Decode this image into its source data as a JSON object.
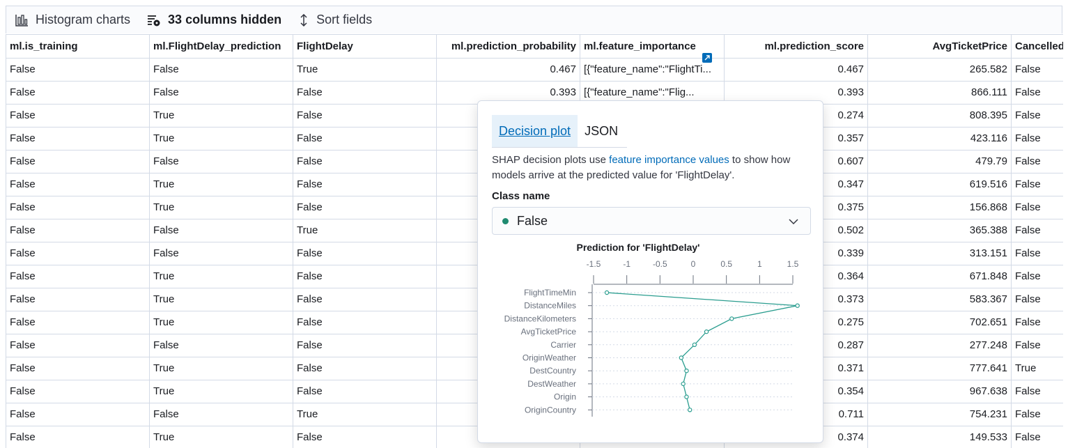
{
  "toolbar": {
    "histogram_label": "Histogram charts",
    "columns_hidden_label": "33 columns hidden",
    "sort_label": "Sort fields"
  },
  "grid": {
    "columns": [
      {
        "label": "ml.is_training",
        "align": "left"
      },
      {
        "label": "ml.FlightDelay_prediction",
        "align": "left"
      },
      {
        "label": "FlightDelay",
        "align": "left"
      },
      {
        "label": "ml.prediction_probability",
        "align": "right"
      },
      {
        "label": "ml.feature_importance",
        "align": "left"
      },
      {
        "label": "ml.prediction_score",
        "align": "right"
      },
      {
        "label": "AvgTicketPrice",
        "align": "right"
      },
      {
        "label": "Cancelled",
        "align": "left"
      }
    ],
    "rows": [
      [
        "False",
        "False",
        "True",
        "0.467",
        "[{\"feature_name\":\"FlightTi...",
        "0.467",
        "265.582",
        "False"
      ],
      [
        "False",
        "False",
        "False",
        "0.393",
        "[{\"feature_name\":\"Flig...",
        "0.393",
        "866.111",
        "False"
      ],
      [
        "False",
        "True",
        "False",
        "",
        "",
        "0.274",
        "808.395",
        "False"
      ],
      [
        "False",
        "True",
        "False",
        "",
        "",
        "0.357",
        "423.116",
        "False"
      ],
      [
        "False",
        "False",
        "False",
        "",
        "",
        "0.607",
        "479.79",
        "False"
      ],
      [
        "False",
        "True",
        "False",
        "",
        "",
        "0.347",
        "619.516",
        "False"
      ],
      [
        "False",
        "True",
        "False",
        "",
        "",
        "0.375",
        "156.868",
        "False"
      ],
      [
        "False",
        "False",
        "True",
        "",
        "",
        "0.502",
        "365.388",
        "False"
      ],
      [
        "False",
        "False",
        "False",
        "",
        "",
        "0.339",
        "313.151",
        "False"
      ],
      [
        "False",
        "True",
        "False",
        "",
        "",
        "0.364",
        "671.848",
        "False"
      ],
      [
        "False",
        "True",
        "False",
        "",
        "",
        "0.373",
        "583.367",
        "False"
      ],
      [
        "False",
        "True",
        "False",
        "",
        "",
        "0.275",
        "702.651",
        "False"
      ],
      [
        "False",
        "False",
        "False",
        "",
        "",
        "0.287",
        "277.248",
        "False"
      ],
      [
        "False",
        "True",
        "False",
        "",
        "",
        "0.371",
        "777.641",
        "True"
      ],
      [
        "False",
        "True",
        "False",
        "",
        "",
        "0.354",
        "967.638",
        "False"
      ],
      [
        "False",
        "False",
        "True",
        "",
        "",
        "0.711",
        "754.231",
        "False"
      ],
      [
        "False",
        "True",
        "False",
        "",
        "",
        "0.374",
        "149.533",
        "False"
      ]
    ]
  },
  "popover": {
    "tabs": [
      {
        "label": "Decision plot",
        "active": true
      },
      {
        "label": "JSON",
        "active": false
      }
    ],
    "description_pre": "SHAP decision plots use ",
    "description_link": "feature importance values",
    "description_post": " to show how models arrive at the predicted value for 'FlightDelay'.",
    "class_label": "Class name",
    "class_value": "False",
    "class_dot_color": "#1f8a70"
  },
  "chart_data": {
    "type": "line",
    "title": "Prediction for 'FlightDelay'",
    "x_ticks": [
      -1.5,
      -1,
      -0.5,
      0,
      0.5,
      1,
      1.5
    ],
    "x_tick_labels": [
      "-1.5",
      "-1",
      "-0.5",
      "0",
      "0.5",
      "1",
      "1.5"
    ],
    "xlim": [
      -1.5,
      1.5
    ],
    "features": [
      "FlightTimeMin",
      "DistanceMiles",
      "DistanceKilometers",
      "AvgTicketPrice",
      "Carrier",
      "OriginWeather",
      "DestCountry",
      "DestWeather",
      "Origin",
      "OriginCountry"
    ],
    "values": [
      -1.3,
      1.57,
      0.58,
      0.2,
      0.02,
      -0.18,
      -0.1,
      -0.15,
      -0.1,
      -0.05
    ],
    "line_color": "#2a9d8f"
  }
}
